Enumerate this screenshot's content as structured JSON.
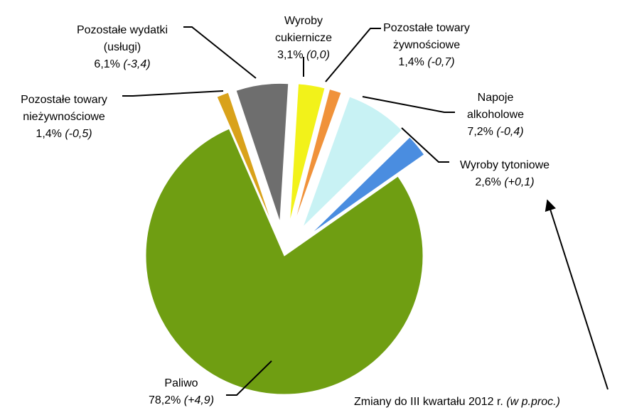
{
  "chart_data": {
    "type": "pie",
    "categories": [
      [
        "Paliwo"
      ],
      [
        "Pozostałe towary",
        "nieżywnościowe"
      ],
      [
        "Pozostałe wydatki",
        "(usługi)"
      ],
      [
        "Wyroby",
        "cukiernicze"
      ],
      [
        "Pozostałe towary",
        "żywnościowe"
      ],
      [
        "Napoje",
        "alkoholowe"
      ],
      [
        "Wyroby tytoniowe"
      ]
    ],
    "values": [
      78.2,
      1.4,
      6.1,
      3.1,
      1.4,
      7.2,
      2.6
    ],
    "value_labels": [
      "78,2%",
      "1,4%",
      "6,1%",
      "3,1%",
      "1,4%",
      "7,2%",
      "2,6%"
    ],
    "changes": [
      4.9,
      -0.5,
      -3.4,
      0.0,
      -0.7,
      -0.4,
      0.1
    ],
    "change_labels": [
      "(+4,9)",
      "(-0,5)",
      "(-3,4)",
      "(0,0)",
      "(-0,7)",
      "(-0,4)",
      "(+0,1)"
    ],
    "colors": [
      "#6f9e12",
      "#d9a21a",
      "#6e6e6e",
      "#f2f21a",
      "#f0923a",
      "#c8f2f4",
      "#4a8de0"
    ],
    "annotation": "Zmiany do III kwartału 2012 r.",
    "annotation_note": "(w p.proc.)"
  }
}
